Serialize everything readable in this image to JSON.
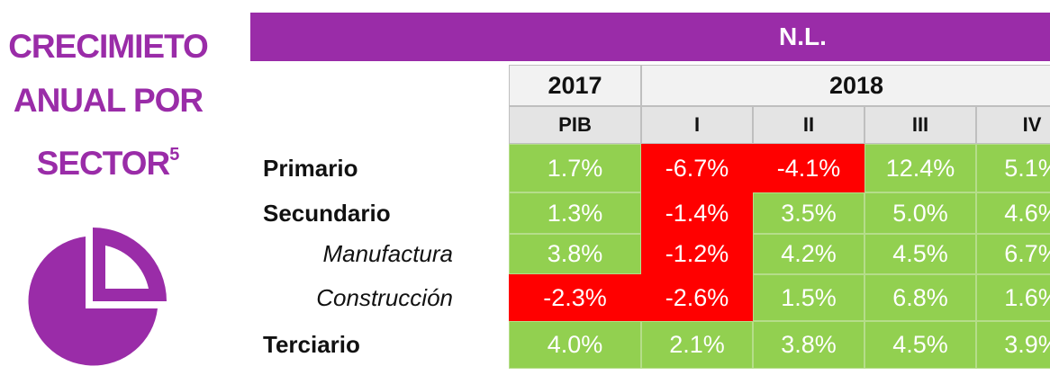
{
  "title": "CRECIMIETO ANUAL POR SECTOR",
  "title_note": "5",
  "table": {
    "region": "N.L.",
    "years": [
      "2017",
      "2018"
    ],
    "periods": [
      "PIB",
      "I",
      "II",
      "III",
      "IV"
    ],
    "rows": [
      {
        "label": "Primario",
        "values": [
          "1.7%",
          "-6.7%",
          "-4.1%",
          "12.4%",
          "5.1%"
        ]
      },
      {
        "label": "Secundario",
        "values": [
          "1.3%",
          "-1.4%",
          "3.5%",
          "5.0%",
          "4.6%"
        ]
      },
      {
        "label": "Manufactura",
        "values": [
          "3.8%",
          "-1.2%",
          "4.2%",
          "4.5%",
          "6.7%"
        ]
      },
      {
        "label": "Construcción",
        "values": [
          "-2.3%",
          "-2.6%",
          "1.5%",
          "6.8%",
          "1.6%"
        ]
      },
      {
        "label": "Terciario",
        "values": [
          "4.0%",
          "2.1%",
          "3.8%",
          "4.5%",
          "3.9%"
        ]
      }
    ]
  },
  "colors": {
    "header": "#9a2ca8",
    "positive": "#92d050",
    "negative": "#ff0000"
  }
}
